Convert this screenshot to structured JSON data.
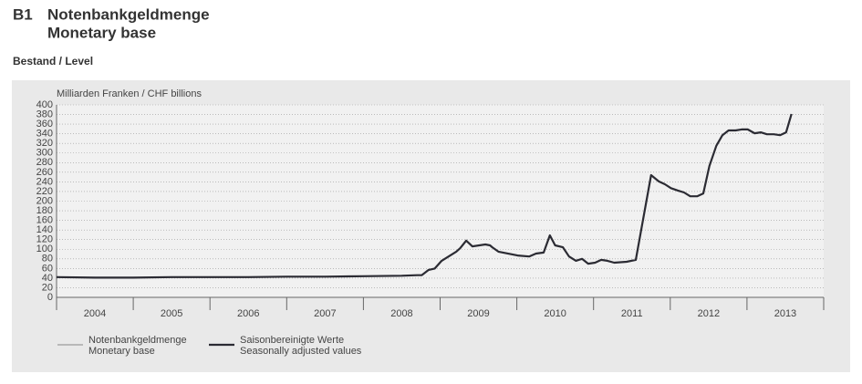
{
  "chart_data": {
    "type": "line",
    "number": "B1",
    "title": "Notenbankgeldmenge",
    "title_en": "Monetary base",
    "subtitle": "Bestand / Level",
    "y_label": "Milliarden Franken / CHF billions",
    "x": [
      2004.0,
      2004.5,
      2005.0,
      2005.5,
      2006.0,
      2006.5,
      2007.0,
      2007.5,
      2008.0,
      2008.5,
      2008.7,
      2008.76,
      2008.85,
      2008.93,
      2009.02,
      2009.21,
      2009.26,
      2009.34,
      2009.42,
      2009.59,
      2009.65,
      2009.68,
      2009.76,
      2010.01,
      2010.16,
      2010.25,
      2010.35,
      2010.43,
      2010.5,
      2010.6,
      2010.68,
      2010.77,
      2010.85,
      2010.93,
      2011.02,
      2011.1,
      2011.18,
      2011.27,
      2011.43,
      2011.55,
      2011.75,
      2011.85,
      2011.93,
      2012.01,
      2012.1,
      2012.18,
      2012.26,
      2012.35,
      2012.43,
      2012.51,
      2012.6,
      2012.68,
      2012.76,
      2012.85,
      2012.93,
      2013.01,
      2013.1,
      2013.18,
      2013.26,
      2013.35,
      2013.43,
      2013.51,
      2013.58
    ],
    "series": [
      {
        "name": "Notenbankgeldmenge",
        "name_en": "Monetary base",
        "color": "#9a9a9a",
        "width": 1.2,
        "values": [
          42,
          41,
          41,
          42,
          42,
          42,
          43,
          43,
          44,
          45,
          46,
          46,
          57,
          60,
          76,
          95,
          102,
          118,
          106,
          110,
          108,
          104,
          95,
          87,
          85,
          91,
          93,
          129,
          108,
          104,
          85,
          76,
          80,
          70,
          72,
          78,
          76,
          72,
          74,
          78,
          254,
          241,
          235,
          227,
          222,
          218,
          210,
          210,
          216,
          273,
          315,
          337,
          347,
          347,
          349,
          349,
          341,
          343,
          339,
          339,
          337,
          343,
          381
        ]
      },
      {
        "name": "Saisonbereinigte Werte",
        "name_en": "Seasonally adjusted values",
        "color": "#2b2b33",
        "width": 2.2,
        "values": [
          42,
          41,
          41,
          42,
          42,
          42,
          43,
          43,
          44,
          45,
          46,
          46,
          57,
          60,
          76,
          95,
          102,
          118,
          106,
          110,
          108,
          104,
          95,
          87,
          85,
          91,
          93,
          129,
          108,
          104,
          85,
          76,
          80,
          70,
          72,
          78,
          76,
          72,
          74,
          78,
          254,
          241,
          235,
          227,
          222,
          218,
          210,
          210,
          216,
          273,
          315,
          337,
          347,
          347,
          349,
          349,
          341,
          343,
          339,
          339,
          337,
          343,
          381
        ]
      }
    ],
    "xlim": [
      2004,
      2014
    ],
    "xticks": [
      {
        "value": 2004,
        "label": "2004"
      },
      {
        "value": 2005,
        "label": "2005"
      },
      {
        "value": 2006,
        "label": "2006"
      },
      {
        "value": 2007,
        "label": "2007"
      },
      {
        "value": 2008,
        "label": "2008"
      },
      {
        "value": 2009,
        "label": "2009"
      },
      {
        "value": 2010,
        "label": "2010"
      },
      {
        "value": 2011,
        "label": "2011"
      },
      {
        "value": 2012,
        "label": "2012"
      },
      {
        "value": 2013,
        "label": "2013"
      }
    ],
    "ylim": [
      0,
      400
    ],
    "yticks": [
      0,
      20,
      40,
      60,
      80,
      100,
      120,
      140,
      160,
      180,
      200,
      220,
      240,
      260,
      280,
      300,
      320,
      340,
      360,
      380,
      400
    ],
    "grid": true
  }
}
